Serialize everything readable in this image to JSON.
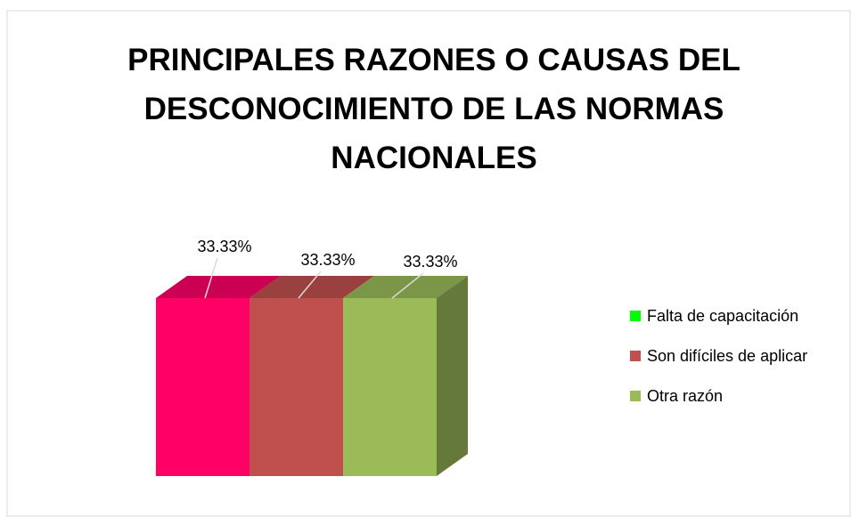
{
  "chart_data": {
    "type": "bar3d",
    "title": "PRINCIPALES RAZONES O CAUSAS DEL DESCONOCIMIENTO DE LAS NORMAS NACIONALES",
    "categories": [
      "Falta de capacitación",
      "Son difíciles de aplicar",
      "Otra razón"
    ],
    "values": [
      33.33,
      33.33,
      33.33
    ],
    "value_labels": [
      "33.33%",
      "33.33%",
      "33.33%"
    ],
    "colors": [
      "#ff0066",
      "#c0504d",
      "#9bbb59"
    ],
    "legend_colors": [
      "#00ff00",
      "#c0504d",
      "#9bbb59"
    ],
    "legend": "right"
  }
}
